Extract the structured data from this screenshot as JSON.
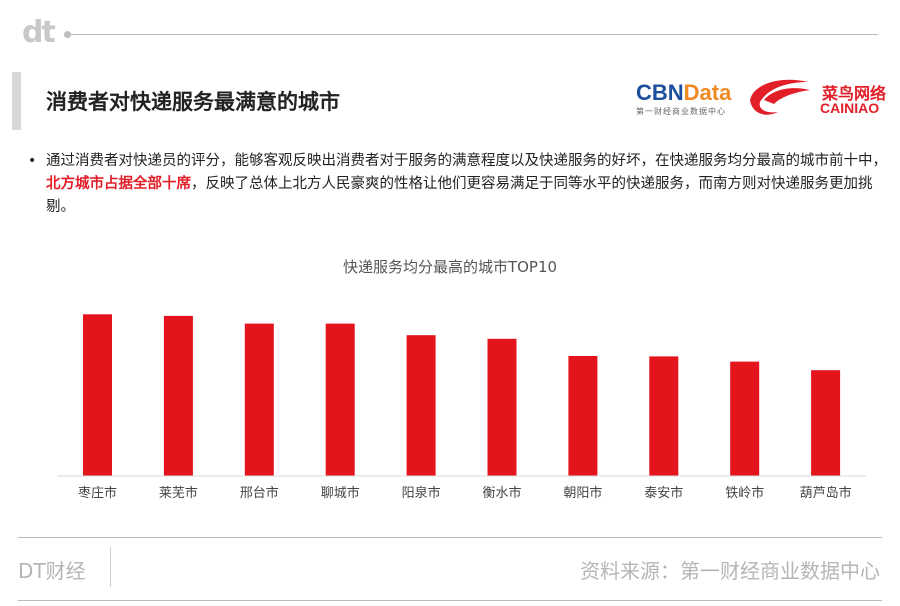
{
  "header": {
    "dt_logo": "dt",
    "title": "消费者对快递服务最满意的城市"
  },
  "logos": {
    "cbn_part1": "CBN",
    "cbn_part2": "Data",
    "cbn_sub": "第一财经商业数据中心",
    "cainiao_cn": "菜鸟网络",
    "cainiao_en": "CAINIAO"
  },
  "description": {
    "bullet": "•",
    "text_before": "通过消费者对快递员的评分，能够客观反映出消费者对于服务的满意程度以及快递服务的好坏，在快递服务均分最高的城市前十中，",
    "highlight": "北方城市占据全部十席",
    "text_after": "，反映了总体上北方人民豪爽的性格让他们更容易满足于同等水平的快递服务，而南方则对快递服务更加挑剔。"
  },
  "chart_data": {
    "type": "bar",
    "title": "快递服务均分最高的城市TOP10",
    "categories": [
      "枣庄市",
      "莱芜市",
      "邢台市",
      "聊城市",
      "阳泉市",
      "衡水市",
      "朝阳市",
      "泰安市",
      "铁岭市",
      "葫芦岛市"
    ],
    "values": [
      0.998,
      0.988,
      0.941,
      0.941,
      0.869,
      0.847,
      0.741,
      0.738,
      0.706,
      0.653
    ],
    "ylim": [
      0,
      1
    ],
    "grid": false,
    "legend": "none",
    "bar_color": "#e3141c"
  },
  "footer": {
    "left": "DT财经",
    "right": "资料来源：第一财经商业数据中心"
  }
}
